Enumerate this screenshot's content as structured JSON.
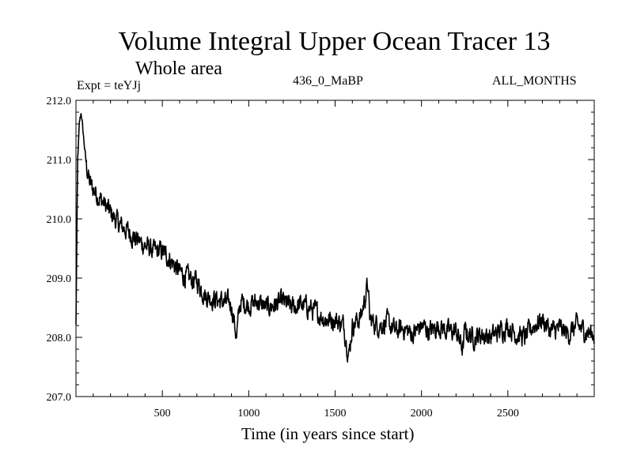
{
  "chart_data": {
    "type": "line",
    "title": "Volume Integral Upper Ocean Tracer 13",
    "subtitle": "Whole area",
    "experiment_label": "Expt = teYJj",
    "period_label": "436_0_MaBP",
    "months_label": "ALL_MONTHS",
    "xlabel": "Time (in years since start)",
    "ylabel": "",
    "xlim": [
      0,
      3000
    ],
    "ylim": [
      207.0,
      212.0
    ],
    "x_ticks": [
      500,
      1000,
      1500,
      2000,
      2500
    ],
    "x_tick_labels": [
      "500",
      "1000",
      "1500",
      "2000",
      "2500"
    ],
    "y_ticks": [
      207.0,
      208.0,
      209.0,
      210.0,
      211.0,
      212.0
    ],
    "y_tick_labels": [
      "207.0",
      "208.0",
      "209.0",
      "210.0",
      "211.0",
      "212.0"
    ],
    "series": [
      {
        "name": "tracer13",
        "x": [
          0,
          10,
          20,
          30,
          40,
          50,
          60,
          80,
          100,
          125,
          150,
          175,
          200,
          250,
          300,
          350,
          400,
          450,
          500,
          550,
          600,
          650,
          700,
          750,
          800,
          850,
          900,
          930,
          950,
          1000,
          1050,
          1100,
          1150,
          1200,
          1250,
          1300,
          1350,
          1400,
          1450,
          1500,
          1550,
          1580,
          1600,
          1650,
          1690,
          1700,
          1750,
          1800,
          1850,
          1900,
          1950,
          2000,
          2050,
          2100,
          2150,
          2200,
          2240,
          2250,
          2300,
          2350,
          2400,
          2450,
          2500,
          2550,
          2600,
          2650,
          2700,
          2750,
          2800,
          2850,
          2900,
          2950,
          3000
        ],
        "values": [
          208.2,
          211.0,
          211.6,
          211.8,
          211.5,
          211.2,
          210.9,
          210.6,
          210.5,
          210.4,
          210.3,
          210.2,
          210.1,
          209.9,
          209.8,
          209.65,
          209.55,
          209.45,
          209.45,
          209.3,
          209.1,
          209.0,
          208.95,
          208.7,
          208.65,
          208.6,
          208.55,
          208.0,
          208.6,
          208.55,
          208.6,
          208.5,
          208.55,
          208.6,
          208.5,
          208.55,
          208.5,
          208.4,
          208.3,
          208.3,
          208.2,
          207.7,
          208.2,
          208.35,
          208.9,
          208.3,
          208.2,
          208.25,
          208.1,
          208.15,
          208.05,
          208.2,
          208.1,
          208.2,
          208.1,
          208.1,
          207.8,
          208.1,
          208.0,
          208.05,
          208.0,
          208.1,
          208.2,
          208.05,
          208.0,
          208.2,
          208.3,
          208.1,
          208.15,
          208.05,
          208.2,
          208.1,
          208.05
        ]
      }
    ]
  }
}
